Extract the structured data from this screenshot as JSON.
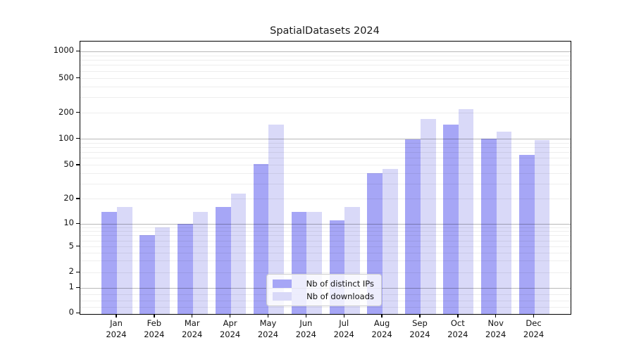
{
  "title": "SpatialDatasets 2024",
  "legend": {
    "items": [
      {
        "label": "Nb of distinct IPs",
        "color": "#a6a6f6"
      },
      {
        "label": "Nb of downloads",
        "color": "#d9d9f8"
      }
    ]
  },
  "colors": {
    "background": "#ffffff",
    "spine": "#000000",
    "bar_distinct_ips": "#a6a6f6",
    "bar_downloads": "#d9d9f8",
    "grid_major": "rgba(0,0,0,0.28)",
    "grid_minor": "rgba(0,0,0,0.065)",
    "text": "#111111"
  },
  "chart_data": {
    "type": "bar",
    "title": "SpatialDatasets 2024",
    "categories": [
      "Jan 2024",
      "Feb 2024",
      "Mar 2024",
      "Apr 2024",
      "May 2024",
      "Jun 2024",
      "Jul 2024",
      "Aug 2024",
      "Sep 2024",
      "Oct 2024",
      "Nov 2024",
      "Dec 2024"
    ],
    "x_tick_lines": [
      [
        "Jan",
        "2024"
      ],
      [
        "Feb",
        "2024"
      ],
      [
        "Mar",
        "2024"
      ],
      [
        "Apr",
        "2024"
      ],
      [
        "May",
        "2024"
      ],
      [
        "Jun",
        "2024"
      ],
      [
        "Jul",
        "2024"
      ],
      [
        "Aug",
        "2024"
      ],
      [
        "Sep",
        "2024"
      ],
      [
        "Oct",
        "2024"
      ],
      [
        "Nov",
        "2024"
      ],
      [
        "Dec",
        "2024"
      ]
    ],
    "series": [
      {
        "name": "Nb of distinct IPs",
        "color": "#a6a6f6",
        "values": [
          14,
          7,
          10,
          16,
          51,
          14,
          11,
          40,
          98,
          145,
          100,
          65
        ]
      },
      {
        "name": "Nb of downloads",
        "color": "#d9d9f8",
        "values": [
          16,
          9,
          14,
          23,
          145,
          14,
          16,
          45,
          170,
          220,
          120,
          96
        ]
      }
    ],
    "yscale": "symlog",
    "ylabel": "",
    "xlabel": "",
    "y_tick_values": [
      0,
      1,
      2,
      5,
      10,
      20,
      50,
      100,
      200,
      500,
      1000
    ],
    "y_tick_labels": [
      "0",
      "1",
      "2",
      "5",
      "10",
      "20",
      "50",
      "100",
      "200",
      "500",
      "1000"
    ],
    "major_grid_values": [
      1,
      10,
      100,
      1000
    ],
    "minor_grid_values": [
      0.25,
      0.5,
      0.75,
      2,
      3,
      4,
      5,
      6,
      7,
      8,
      9,
      20,
      30,
      40,
      50,
      60,
      70,
      80,
      90,
      200,
      300,
      400,
      500,
      600,
      700,
      800,
      900
    ],
    "ylim": [
      0,
      1300
    ],
    "grid": "both",
    "legend_position": "lower center"
  }
}
